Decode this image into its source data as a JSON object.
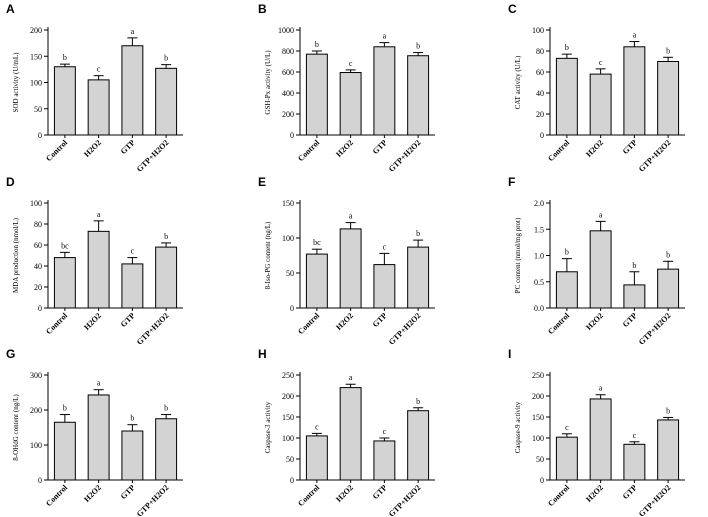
{
  "chart_data": [
    {
      "panel": "A",
      "type": "bar",
      "categories": [
        "Control",
        "H2O2",
        "GTP",
        "GTP+H2O2"
      ],
      "values": [
        130,
        105,
        170,
        127
      ],
      "errors": [
        5,
        8,
        15,
        7
      ],
      "letters": [
        "b",
        "c",
        "a",
        "b"
      ],
      "ylabel": "SOD activity (U/mL)",
      "ylim": [
        0,
        200
      ],
      "yticks": [
        0,
        50,
        100,
        150,
        200
      ],
      "ytick_labels": [
        "0",
        "50",
        "100",
        "150",
        "200"
      ]
    },
    {
      "panel": "B",
      "type": "bar",
      "categories": [
        "Control",
        "H2O2",
        "GTP",
        "GTP+H2O2"
      ],
      "values": [
        770,
        595,
        840,
        755
      ],
      "errors": [
        30,
        25,
        40,
        30
      ],
      "letters": [
        "b",
        "c",
        "a",
        "b"
      ],
      "ylabel": "GSH-Px activity (U/L)",
      "ylim": [
        0,
        1000
      ],
      "yticks": [
        0,
        200,
        400,
        600,
        800,
        1000
      ],
      "ytick_labels": [
        "0",
        "200",
        "400",
        "600",
        "800",
        "1000"
      ]
    },
    {
      "panel": "C",
      "type": "bar",
      "categories": [
        "Control",
        "H2O2",
        "GTP",
        "GTP+H2O2"
      ],
      "values": [
        73,
        58,
        84,
        70
      ],
      "errors": [
        4,
        5,
        5,
        4
      ],
      "letters": [
        "b",
        "c",
        "a",
        "b"
      ],
      "ylabel": "CAT activity (U/L)",
      "ylim": [
        0,
        100
      ],
      "yticks": [
        0,
        20,
        40,
        60,
        80,
        100
      ],
      "ytick_labels": [
        "0",
        "20",
        "40",
        "60",
        "80",
        "100"
      ]
    },
    {
      "panel": "D",
      "type": "bar",
      "categories": [
        "Control",
        "H2O2",
        "GTP",
        "GTP+H2O2"
      ],
      "values": [
        48,
        73,
        42,
        58
      ],
      "errors": [
        5,
        10,
        6,
        4
      ],
      "letters": [
        "bc",
        "a",
        "c",
        "b"
      ],
      "ylabel": "MDA production (nmol/L)",
      "ylim": [
        0,
        100
      ],
      "yticks": [
        0,
        20,
        40,
        60,
        80,
        100
      ],
      "ytick_labels": [
        "0",
        "20",
        "40",
        "60",
        "80",
        "100"
      ]
    },
    {
      "panel": "E",
      "type": "bar",
      "categories": [
        "Control",
        "H2O2",
        "GTP",
        "GTP+H2O2"
      ],
      "values": [
        77,
        113,
        62,
        87
      ],
      "errors": [
        7,
        9,
        16,
        10
      ],
      "letters": [
        "bc",
        "a",
        "c",
        "b"
      ],
      "ylabel": "8-Iso-PG content (ng/L)",
      "ylim": [
        0,
        150
      ],
      "yticks": [
        0,
        50,
        100,
        150
      ],
      "ytick_labels": [
        "0",
        "50",
        "100",
        "150"
      ]
    },
    {
      "panel": "F",
      "type": "bar",
      "categories": [
        "Control",
        "H2O2",
        "GTP",
        "GTP+H2O2"
      ],
      "values": [
        0.69,
        1.47,
        0.44,
        0.74
      ],
      "errors": [
        0.25,
        0.18,
        0.25,
        0.15
      ],
      "letters": [
        "b",
        "a",
        "b",
        "b"
      ],
      "ylabel": "PC content (nmol/mg prot)",
      "ylim": [
        0,
        2.0
      ],
      "yticks": [
        0,
        0.5,
        1.0,
        1.5,
        2.0
      ],
      "ytick_labels": [
        "0.0",
        "0.5",
        "1.0",
        "1.5",
        "2.0"
      ]
    },
    {
      "panel": "G",
      "type": "bar",
      "categories": [
        "Control",
        "H2O2",
        "GTP",
        "GTP+H2O2"
      ],
      "values": [
        165,
        243,
        140,
        175
      ],
      "errors": [
        22,
        15,
        18,
        12
      ],
      "letters": [
        "b",
        "a",
        "b",
        "b"
      ],
      "ylabel": "8-OHdG content (ng/L)",
      "ylim": [
        0,
        300
      ],
      "yticks": [
        0,
        100,
        200,
        300
      ],
      "ytick_labels": [
        "0",
        "100",
        "200",
        "300"
      ]
    },
    {
      "panel": "H",
      "type": "bar",
      "categories": [
        "Control",
        "H2O2",
        "GTP",
        "GTP+H2O2"
      ],
      "values": [
        105,
        220,
        93,
        165
      ],
      "errors": [
        6,
        8,
        7,
        7
      ],
      "letters": [
        "c",
        "a",
        "c",
        "b"
      ],
      "ylabel": "Caspase-3 activity",
      "ylim": [
        0,
        250
      ],
      "yticks": [
        0,
        50,
        100,
        150,
        200,
        250
      ],
      "ytick_labels": [
        "0",
        "50",
        "100",
        "150",
        "200",
        "250"
      ]
    },
    {
      "panel": "I",
      "type": "bar",
      "categories": [
        "Control",
        "H2O2",
        "GTP",
        "GTP+H2O2"
      ],
      "values": [
        102,
        193,
        85,
        143
      ],
      "errors": [
        8,
        10,
        6,
        6
      ],
      "letters": [
        "c",
        "a",
        "c",
        "b"
      ],
      "ylabel": "Caspase-9 activity",
      "ylim": [
        0,
        250
      ],
      "yticks": [
        0,
        50,
        100,
        150,
        200,
        250
      ],
      "ytick_labels": [
        "0",
        "50",
        "100",
        "150",
        "200",
        "250"
      ]
    }
  ],
  "colors": {
    "bar_fill": "#d3d3d3",
    "stroke": "#000000",
    "text": "#000000"
  }
}
